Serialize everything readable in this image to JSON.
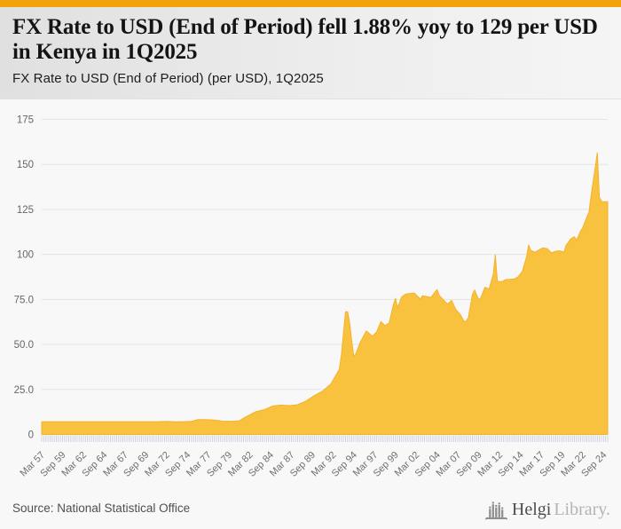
{
  "page": {
    "accent_color": "#F2A30B",
    "background_color": "#f8f8f8"
  },
  "header": {
    "title": "FX Rate to USD (End of Period) fell 1.88% yoy to 129 per USD in Kenya in 1Q2025",
    "subtitle": "FX Rate to USD (End of Period) (per USD), 1Q2025"
  },
  "chart_data": {
    "type": "area",
    "title": "FX Rate to USD (End of Period) fell 1.88% yoy to 129 per USD in Kenya in 1Q2025",
    "subtitle": "FX Rate to USD (End of Period) (per USD), 1Q2025",
    "country": "Kenya",
    "unit": "KES per USD, end of period",
    "frequency": "quarterly",
    "x_start": "Mar 1957",
    "x_end": "Mar 2025",
    "key_facts": {
      "latest_period": "1Q2025",
      "latest_value": 129,
      "yoy_change_percent": -1.88
    },
    "ylim": [
      0,
      175
    ],
    "grid": true,
    "legend": "none",
    "fill_color": "#F9C23E",
    "stroke_color": "#F4B22C",
    "gridline_color": "#e4e4e4",
    "tick_color": "#c7d0e2",
    "y_ticks": [
      {
        "value": 0,
        "label": "0"
      },
      {
        "value": 25,
        "label": "25.0"
      },
      {
        "value": 50,
        "label": "50.0"
      },
      {
        "value": 75,
        "label": "75.0"
      },
      {
        "value": 100,
        "label": "100"
      },
      {
        "value": 125,
        "label": "125"
      },
      {
        "value": 150,
        "label": "150"
      },
      {
        "value": 175,
        "label": "175"
      }
    ],
    "x_tick_every_quarters": 10,
    "x_tick_labels": [
      "Mar 57",
      "Sep 59",
      "Mar 62",
      "Sep 64",
      "Mar 67",
      "Sep 69",
      "Mar 72",
      "Sep 74",
      "Mar 77",
      "Sep 79",
      "Mar 82",
      "Sep 84",
      "Mar 87",
      "Sep 89",
      "Mar 92",
      "Sep 94",
      "Mar 97",
      "Sep 99",
      "Mar 02",
      "Sep 04",
      "Mar 07",
      "Sep 09",
      "Mar 12",
      "Sep 14",
      "Mar 17",
      "Sep 19",
      "Mar 22",
      "Sep 24"
    ],
    "points_format": "[quarter_index_from_Mar1957, KES_per_USD]",
    "points": [
      [
        0,
        7.1
      ],
      [
        56,
        7.1
      ],
      [
        60,
        7.3
      ],
      [
        64,
        7.0
      ],
      [
        68,
        7.1
      ],
      [
        72,
        7.3
      ],
      [
        75,
        8.3
      ],
      [
        79,
        8.3
      ],
      [
        83,
        8.0
      ],
      [
        87,
        7.4
      ],
      [
        91,
        7.3
      ],
      [
        95,
        7.6
      ],
      [
        97,
        9.0
      ],
      [
        99,
        10.3
      ],
      [
        103,
        12.7
      ],
      [
        107,
        13.8
      ],
      [
        111,
        15.8
      ],
      [
        115,
        16.3
      ],
      [
        119,
        16.0
      ],
      [
        123,
        16.5
      ],
      [
        127,
        18.6
      ],
      [
        131,
        21.6
      ],
      [
        135,
        24.1
      ],
      [
        139,
        28.1
      ],
      [
        143,
        36.2
      ],
      [
        144,
        44.0
      ],
      [
        145,
        56.0
      ],
      [
        146,
        68.2
      ],
      [
        147,
        68.2
      ],
      [
        148,
        62.0
      ],
      [
        149,
        52.0
      ],
      [
        150,
        43.5
      ],
      [
        151,
        44.8
      ],
      [
        153,
        51.0
      ],
      [
        156,
        57.5
      ],
      [
        159,
        54.5
      ],
      [
        161,
        57.0
      ],
      [
        163,
        62.7
      ],
      [
        165,
        60.5
      ],
      [
        167,
        61.9
      ],
      [
        169,
        72.0
      ],
      [
        170,
        75.6
      ],
      [
        171,
        70.3
      ],
      [
        173,
        76.5
      ],
      [
        175,
        78.0
      ],
      [
        179,
        78.6
      ],
      [
        182,
        75.2
      ],
      [
        183,
        77.1
      ],
      [
        187,
        76.1
      ],
      [
        190,
        80.5
      ],
      [
        191,
        77.3
      ],
      [
        195,
        72.4
      ],
      [
        197,
        74.5
      ],
      [
        199,
        69.4
      ],
      [
        201,
        66.9
      ],
      [
        203,
        62.7
      ],
      [
        204,
        63.0
      ],
      [
        205,
        64.7
      ],
      [
        207,
        77.7
      ],
      [
        208,
        80.3
      ],
      [
        210,
        74.9
      ],
      [
        211,
        75.8
      ],
      [
        213,
        81.8
      ],
      [
        215,
        80.8
      ],
      [
        217,
        89.0
      ],
      [
        218,
        99.8
      ],
      [
        219,
        85.1
      ],
      [
        221,
        84.8
      ],
      [
        223,
        86.0
      ],
      [
        227,
        86.3
      ],
      [
        229,
        87.6
      ],
      [
        231,
        90.6
      ],
      [
        233,
        98.6
      ],
      [
        234,
        105.3
      ],
      [
        235,
        102.3
      ],
      [
        237,
        101.2
      ],
      [
        239,
        102.5
      ],
      [
        241,
        103.7
      ],
      [
        243,
        103.2
      ],
      [
        245,
        100.8
      ],
      [
        247,
        101.8
      ],
      [
        249,
        102.0
      ],
      [
        251,
        101.3
      ],
      [
        252,
        105.2
      ],
      [
        253,
        106.5
      ],
      [
        254,
        108.4
      ],
      [
        255,
        109.2
      ],
      [
        256,
        109.8
      ],
      [
        257,
        107.8
      ],
      [
        258,
        110.5
      ],
      [
        259,
        113.1
      ],
      [
        260,
        114.9
      ],
      [
        261,
        117.8
      ],
      [
        262,
        120.7
      ],
      [
        263,
        123.4
      ],
      [
        264,
        132.3
      ],
      [
        265,
        140.5
      ],
      [
        266,
        148.1
      ],
      [
        267,
        156.5
      ],
      [
        268,
        131.8
      ],
      [
        269,
        129.5
      ],
      [
        270,
        129.2
      ],
      [
        271,
        129.3
      ],
      [
        272,
        129.3
      ]
    ]
  },
  "footer": {
    "source": "Source: National Statistical Office",
    "logo_part1": "Helgi",
    "logo_part2": "Library."
  }
}
